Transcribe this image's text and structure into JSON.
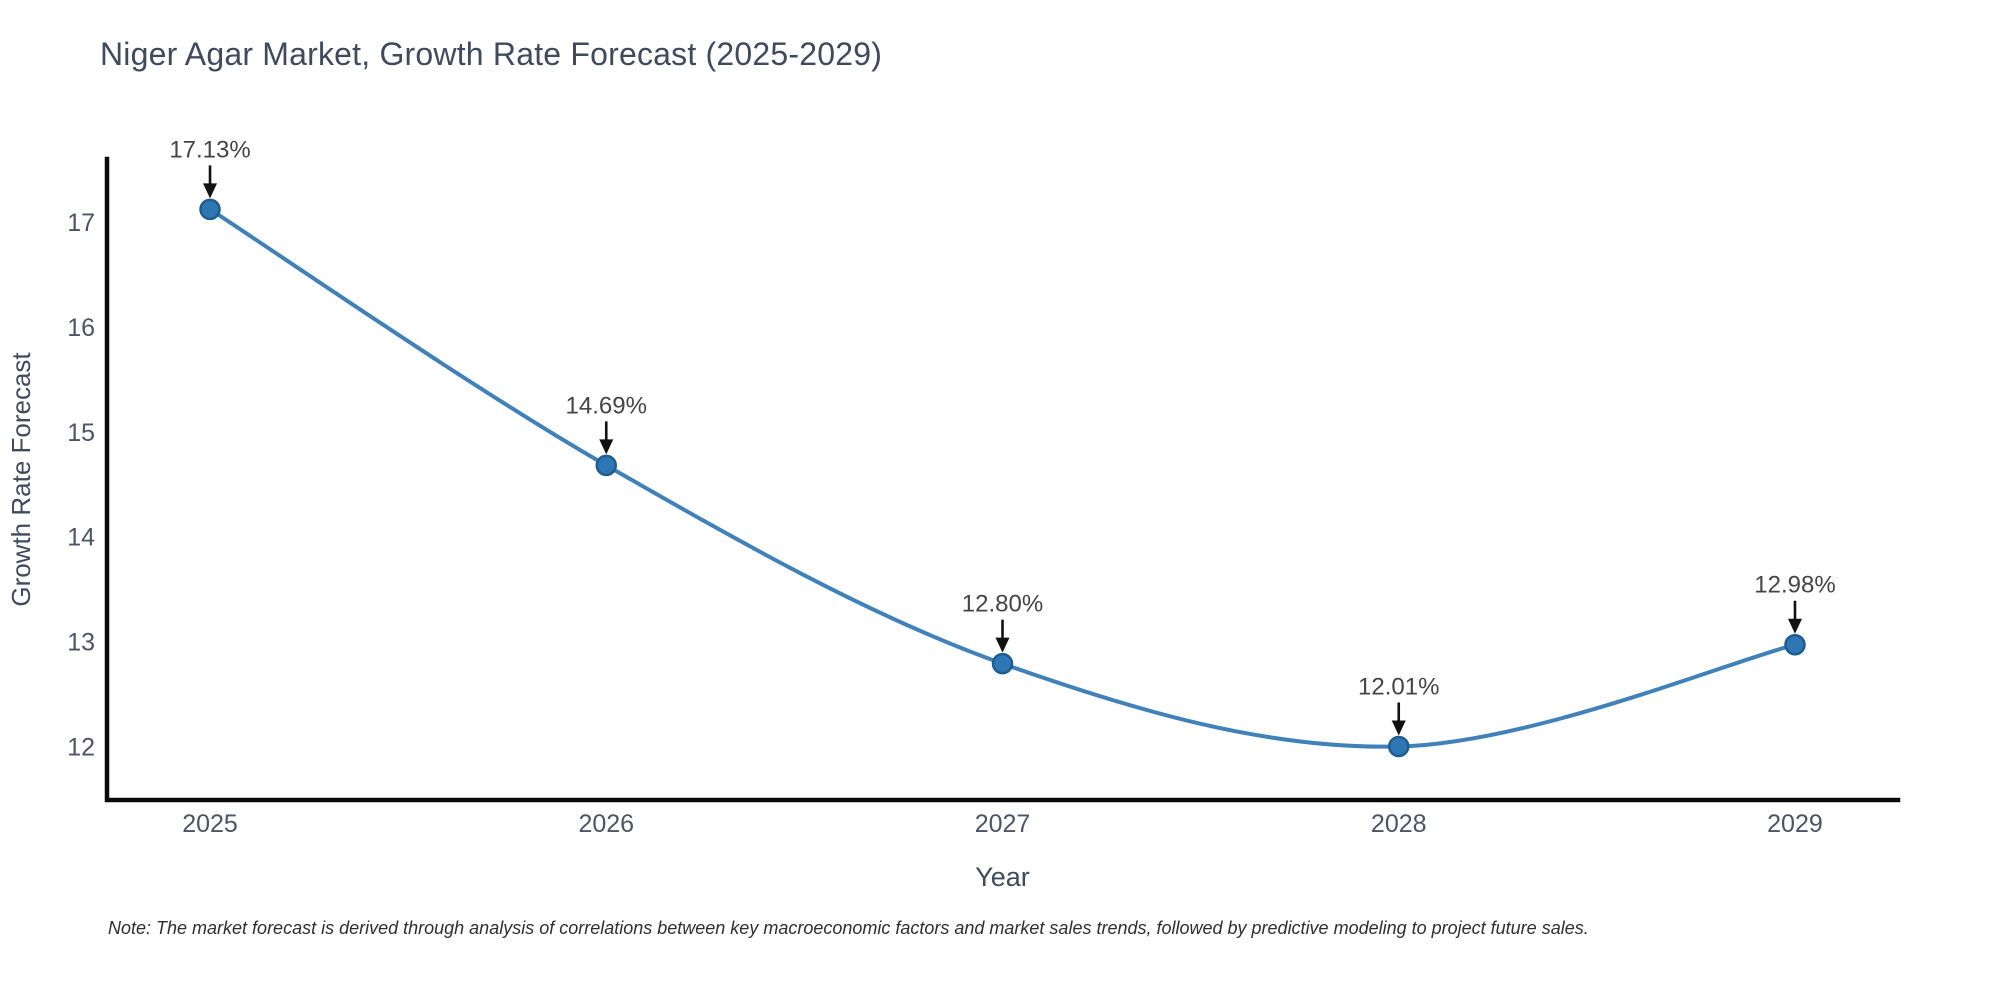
{
  "title": {
    "text": "Niger Agar Market, Growth Rate Forecast (2025-2029)",
    "color": "#3f4a5d"
  },
  "note": {
    "text": "Note: The market forecast is derived through analysis of correlations between key macroeconomic factors and market sales trends, followed by predictive modeling to project future sales.",
    "color": "#2f2f2f"
  },
  "chart_data": {
    "type": "line",
    "title": "Niger Agar Market, Growth Rate Forecast (2025-2029)",
    "xlabel": "Year",
    "ylabel": "Growth Rate Forecast",
    "categories": [
      2025,
      2026,
      2027,
      2028,
      2029
    ],
    "series": [
      {
        "name": "Growth Rate Forecast",
        "values": [
          17.13,
          14.69,
          12.8,
          12.01,
          12.98
        ]
      }
    ],
    "point_labels": [
      "17.13%",
      "14.69%",
      "12.80%",
      "12.01%",
      "12.98%"
    ],
    "yticks": [
      12,
      13,
      14,
      15,
      16,
      17
    ],
    "xlim": [
      2024.74,
      2029.26
    ],
    "ylim": [
      11.5,
      17.61
    ],
    "grid": false,
    "legend": "none",
    "curve": "smooth",
    "markers": true,
    "annotations": "value-labels-with-arrows",
    "colors": {
      "line": "#4181ba",
      "marker_fill": "#2e77b5",
      "marker_edge": "#1f5c8f",
      "axis": "#0a0a0a",
      "tick_label": "#4c5564",
      "axis_label": "#3f4a5d",
      "annotation_text": "#454545",
      "annotation_arrow": "#111111",
      "background": "#ffffff"
    }
  }
}
